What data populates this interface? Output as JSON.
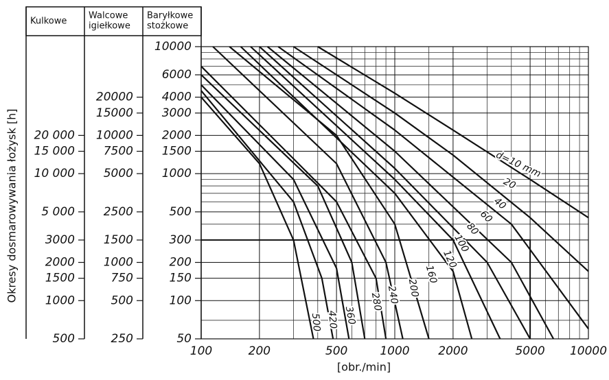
{
  "chart_data": {
    "type": "line",
    "y_label": "Okresy dosmarowywania łożysk [h]",
    "x_label": "[obr./min]",
    "log_x": true,
    "log_y": true,
    "grid": true,
    "xlim": [
      100,
      10000
    ],
    "xticks": [
      100,
      200,
      500,
      1000,
      2000,
      5000,
      10000
    ],
    "xminorticks": [
      300,
      400,
      600,
      700,
      800,
      900,
      1500,
      3000,
      4000,
      6000,
      7000,
      8000,
      9000
    ],
    "ylim": [
      50,
      10000
    ],
    "yminorticks": [
      70,
      400,
      600,
      700,
      800,
      900,
      5000,
      7000,
      8000,
      9000
    ],
    "scales": [
      {
        "name": [
          "Kulkowe"
        ],
        "ylim": [
          500,
          100000
        ],
        "yticks": [
          {
            "value": 20000,
            "label": "20 000"
          },
          {
            "value": 15000,
            "label": "15 000"
          },
          {
            "value": 10000,
            "label": "10 000"
          },
          {
            "value": 5000,
            "label": "5 000"
          },
          3000,
          2000,
          1500,
          1000,
          500
        ]
      },
      {
        "name": [
          "Walcowe",
          "igiełkowe"
        ],
        "ylim": [
          250,
          50000
        ],
        "yticks": [
          20000,
          15000,
          10000,
          7500,
          5000,
          2500,
          1500,
          1000,
          750,
          500,
          250
        ]
      },
      {
        "name": [
          "Baryłkowe",
          "stożkowe"
        ],
        "ylim": [
          50,
          10000
        ],
        "yticks": [
          10000,
          6000,
          4000,
          3000,
          2000,
          1500,
          1000,
          500,
          300,
          200,
          150,
          100,
          50
        ]
      }
    ],
    "example_point": {
      "x": 5000,
      "y": 300
    },
    "series": [
      {
        "name": "d=10 mm",
        "color": "#111",
        "x": [
          400,
          1000,
          2000,
          5000,
          10000
        ],
        "values": [
          10000,
          4300,
          2200,
          900,
          450
        ]
      },
      {
        "name": "20",
        "color": "#111",
        "x": [
          300,
          1000,
          2000,
          5000,
          10000
        ],
        "values": [
          10000,
          3000,
          1400,
          450,
          170
        ]
      },
      {
        "name": "40",
        "color": "#111",
        "x": [
          250,
          1000,
          4000,
          10000
        ],
        "values": [
          10000,
          2200,
          400,
          60
        ]
      },
      {
        "name": "60",
        "color": "#111",
        "x": [
          220,
          1000,
          4000,
          6600
        ],
        "values": [
          10000,
          1500,
          200,
          50
        ]
      },
      {
        "name": "80",
        "color": "#111",
        "x": [
          200,
          1000,
          3000,
          5000
        ],
        "values": [
          10000,
          1100,
          200,
          50
        ]
      },
      {
        "name": "100",
        "color": "#111",
        "x": [
          180,
          1000,
          2000,
          3500
        ],
        "values": [
          10000,
          900,
          300,
          50
        ]
      },
      {
        "name": "120",
        "color": "#111",
        "x": [
          160,
          1000,
          2000,
          2500
        ],
        "values": [
          10000,
          700,
          170,
          50
        ]
      },
      {
        "name": "160",
        "color": "#111",
        "x": [
          140,
          500,
          1000,
          1500
        ],
        "values": [
          10000,
          2000,
          400,
          50
        ]
      },
      {
        "name": "200",
        "color": "#111",
        "x": [
          115,
          500,
          900,
          1100
        ],
        "values": [
          10000,
          1200,
          200,
          50
        ]
      },
      {
        "name": "240",
        "color": "#111",
        "x": [
          100,
          500,
          800,
          900
        ],
        "values": [
          7000,
          600,
          150,
          50
        ]
      },
      {
        "name": "280",
        "color": "#111",
        "x": [
          100,
          400,
          600,
          700
        ],
        "values": [
          6000,
          800,
          200,
          50
        ]
      },
      {
        "name": "360",
        "color": "#111",
        "x": [
          100,
          300,
          500,
          580
        ],
        "values": [
          5000,
          900,
          180,
          50
        ]
      },
      {
        "name": "420",
        "color": "#111",
        "x": [
          100,
          300,
          420,
          480
        ],
        "values": [
          4500,
          600,
          150,
          50
        ]
      },
      {
        "name": "500",
        "color": "#111",
        "x": [
          100,
          200,
          300,
          380
        ],
        "values": [
          4000,
          1200,
          300,
          50
        ]
      }
    ]
  }
}
